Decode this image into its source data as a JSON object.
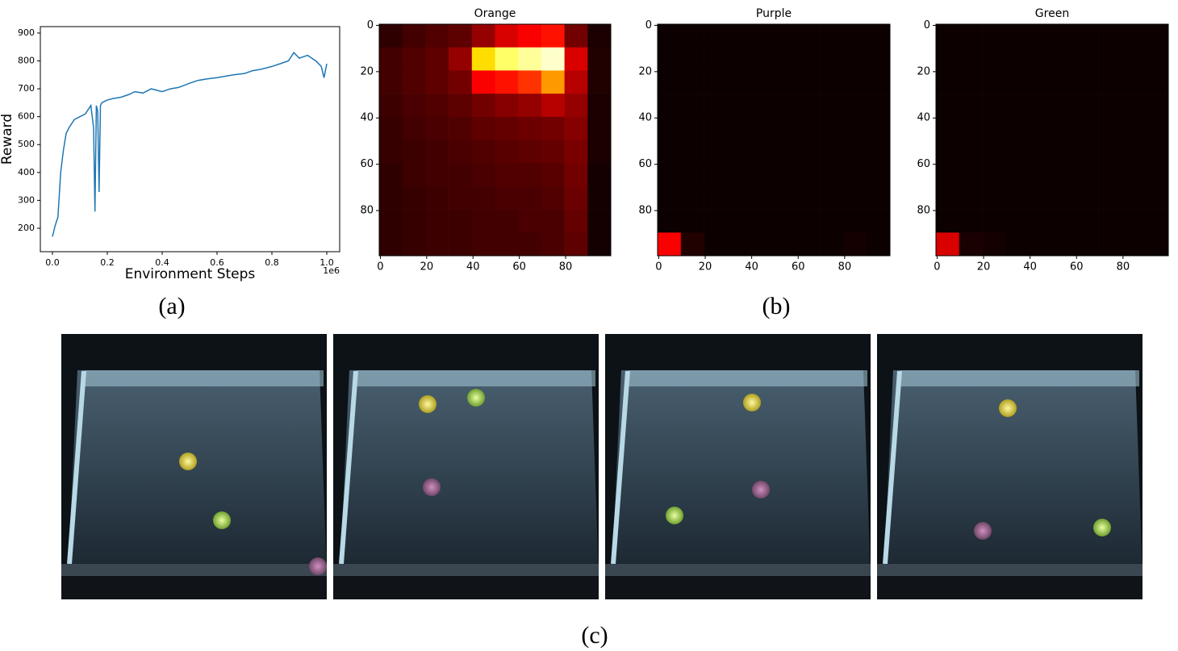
{
  "chart_data": [
    {
      "type": "line",
      "ylabel": "Reward",
      "xlabel": "Environment Steps",
      "x_offset_label": "1e6",
      "color": "#1f77b4",
      "x": [
        0,
        10000,
        20000,
        30000,
        40000,
        50000,
        60000,
        80000,
        100000,
        120000,
        140000,
        150000,
        155000,
        160000,
        165000,
        170000,
        175000,
        180000,
        200000,
        220000,
        250000,
        280000,
        300000,
        330000,
        360000,
        400000,
        430000,
        460000,
        500000,
        530000,
        560000,
        600000,
        630000,
        660000,
        700000,
        730000,
        760000,
        800000,
        830000,
        860000,
        880000,
        900000,
        930000,
        960000,
        980000,
        990000,
        1000000
      ],
      "values": [
        170,
        210,
        240,
        400,
        480,
        540,
        560,
        590,
        600,
        610,
        640,
        560,
        260,
        640,
        620,
        330,
        640,
        650,
        660,
        665,
        670,
        680,
        690,
        685,
        700,
        690,
        700,
        705,
        720,
        730,
        735,
        740,
        745,
        750,
        755,
        765,
        770,
        780,
        790,
        800,
        830,
        810,
        820,
        800,
        780,
        740,
        790
      ],
      "xlim": [
        -44000,
        1047000
      ],
      "xticks": [
        {
          "value": 0,
          "label": "0.0"
        },
        {
          "value": 200000,
          "label": "0.2"
        },
        {
          "value": 400000,
          "label": "0.4"
        },
        {
          "value": 600000,
          "label": "0.6"
        },
        {
          "value": 800000,
          "label": "0.8"
        },
        {
          "value": 1000000,
          "label": "1.0"
        }
      ],
      "ylim": [
        116,
        923
      ],
      "yticks": [
        200,
        300,
        400,
        500,
        600,
        700,
        800,
        900
      ]
    },
    {
      "type": "heatmap",
      "title": "Orange",
      "colormap": "hot",
      "xlim": [
        -0.5,
        99.5
      ],
      "ylim": [
        99.5,
        -0.5
      ],
      "xticks": [
        0,
        20,
        40,
        60,
        80
      ],
      "yticks": [
        0,
        20,
        40,
        60,
        80
      ],
      "values": [
        [
          0.05,
          0.08,
          0.1,
          0.12,
          0.2,
          0.3,
          0.35,
          0.4,
          0.15,
          0.02
        ],
        [
          0.08,
          0.1,
          0.12,
          0.2,
          0.7,
          0.85,
          0.9,
          0.95,
          0.3,
          0.03
        ],
        [
          0.08,
          0.1,
          0.12,
          0.15,
          0.35,
          0.4,
          0.45,
          0.6,
          0.25,
          0.03
        ],
        [
          0.07,
          0.09,
          0.1,
          0.12,
          0.15,
          0.18,
          0.2,
          0.25,
          0.2,
          0.02
        ],
        [
          0.06,
          0.08,
          0.09,
          0.1,
          0.12,
          0.13,
          0.14,
          0.15,
          0.18,
          0.02
        ],
        [
          0.06,
          0.07,
          0.08,
          0.09,
          0.1,
          0.11,
          0.12,
          0.13,
          0.16,
          0.02
        ],
        [
          0.05,
          0.07,
          0.08,
          0.08,
          0.09,
          0.1,
          0.1,
          0.11,
          0.15,
          0.01
        ],
        [
          0.05,
          0.06,
          0.07,
          0.08,
          0.08,
          0.09,
          0.09,
          0.1,
          0.14,
          0.01
        ],
        [
          0.05,
          0.06,
          0.07,
          0.07,
          0.08,
          0.08,
          0.09,
          0.09,
          0.13,
          0.01
        ],
        [
          0.05,
          0.06,
          0.07,
          0.07,
          0.08,
          0.08,
          0.08,
          0.09,
          0.12,
          0.01
        ]
      ]
    },
    {
      "type": "heatmap",
      "title": "Purple",
      "colormap": "hot",
      "xlim": [
        -0.5,
        99.5
      ],
      "ylim": [
        99.5,
        -0.5
      ],
      "xticks": [
        0,
        20,
        40,
        60,
        80
      ],
      "yticks": [
        0,
        20,
        40,
        60,
        80
      ],
      "values": [
        [
          0,
          0,
          0,
          0,
          0,
          0,
          0,
          0,
          0,
          0
        ],
        [
          0,
          0,
          0,
          0,
          0,
          0,
          0,
          0,
          0,
          0
        ],
        [
          0,
          0,
          0,
          0,
          0,
          0,
          0,
          0,
          0,
          0
        ],
        [
          0,
          0,
          0,
          0,
          0,
          0,
          0,
          0,
          0,
          0
        ],
        [
          0,
          0,
          0,
          0,
          0,
          0,
          0,
          0,
          0,
          0
        ],
        [
          0,
          0,
          0,
          0,
          0,
          0,
          0,
          0,
          0,
          0
        ],
        [
          0,
          0,
          0,
          0,
          0,
          0,
          0,
          0,
          0,
          0
        ],
        [
          0,
          0,
          0,
          0,
          0,
          0,
          0,
          0,
          0,
          0
        ],
        [
          0,
          0,
          0,
          0,
          0,
          0,
          0,
          0,
          0,
          0
        ],
        [
          0.35,
          0.03,
          0,
          0,
          0,
          0,
          0,
          0,
          0.01,
          0
        ]
      ]
    },
    {
      "type": "heatmap",
      "title": "Green",
      "colormap": "hot",
      "xlim": [
        -0.5,
        99.5
      ],
      "ylim": [
        99.5,
        -0.5
      ],
      "xticks": [
        0,
        20,
        40,
        60,
        80
      ],
      "yticks": [
        0,
        20,
        40,
        60,
        80
      ],
      "values": [
        [
          0,
          0,
          0,
          0,
          0,
          0,
          0,
          0,
          0,
          0
        ],
        [
          0,
          0,
          0,
          0,
          0,
          0,
          0,
          0,
          0,
          0
        ],
        [
          0,
          0,
          0,
          0,
          0,
          0,
          0,
          0,
          0,
          0
        ],
        [
          0,
          0,
          0,
          0,
          0,
          0,
          0,
          0,
          0,
          0
        ],
        [
          0,
          0,
          0,
          0,
          0,
          0,
          0,
          0,
          0,
          0
        ],
        [
          0,
          0,
          0,
          0,
          0,
          0,
          0,
          0,
          0,
          0
        ],
        [
          0,
          0,
          0,
          0,
          0,
          0,
          0,
          0,
          0,
          0
        ],
        [
          0,
          0,
          0,
          0,
          0,
          0,
          0,
          0,
          0,
          0
        ],
        [
          0,
          0,
          0,
          0,
          0,
          0,
          0,
          0,
          0,
          0
        ],
        [
          0.3,
          0.02,
          0.01,
          0,
          0,
          0,
          0,
          0,
          0,
          0
        ]
      ]
    }
  ],
  "captions": {
    "a": "(a)",
    "b": "(b)",
    "c": "(c)"
  }
}
